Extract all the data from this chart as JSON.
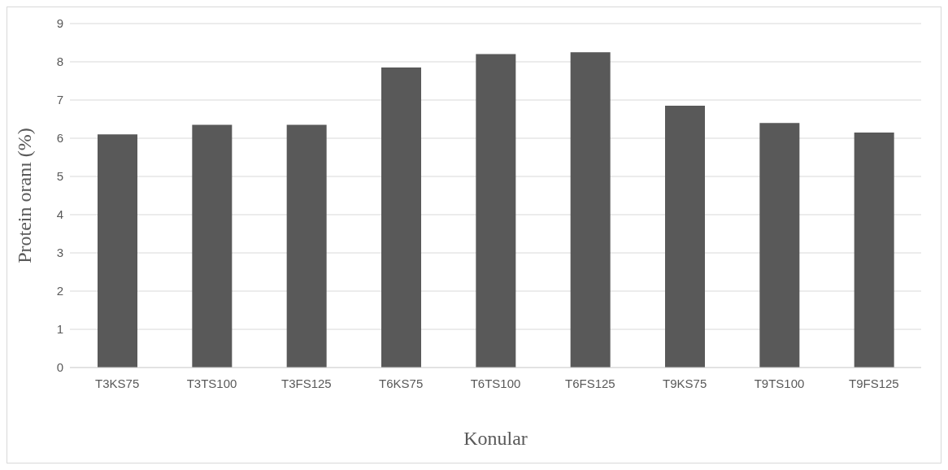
{
  "chart_data": {
    "type": "bar",
    "xlabel": "Konular",
    "ylabel": "Protein oranı (%)",
    "categories": [
      "T3KS75",
      "T3TS100",
      "T3FS125",
      "T6KS75",
      "T6TS100",
      "T6FS125",
      "T9KS75",
      "T9TS100",
      "T9FS125"
    ],
    "values": [
      6.1,
      6.35,
      6.35,
      7.85,
      8.2,
      8.25,
      6.85,
      6.4,
      6.15
    ],
    "color": "#595959",
    "ylim": [
      0,
      9
    ],
    "yticks": [
      0,
      1,
      2,
      3,
      4,
      5,
      6,
      7,
      8,
      9
    ],
    "grid": "y",
    "legend": false
  }
}
